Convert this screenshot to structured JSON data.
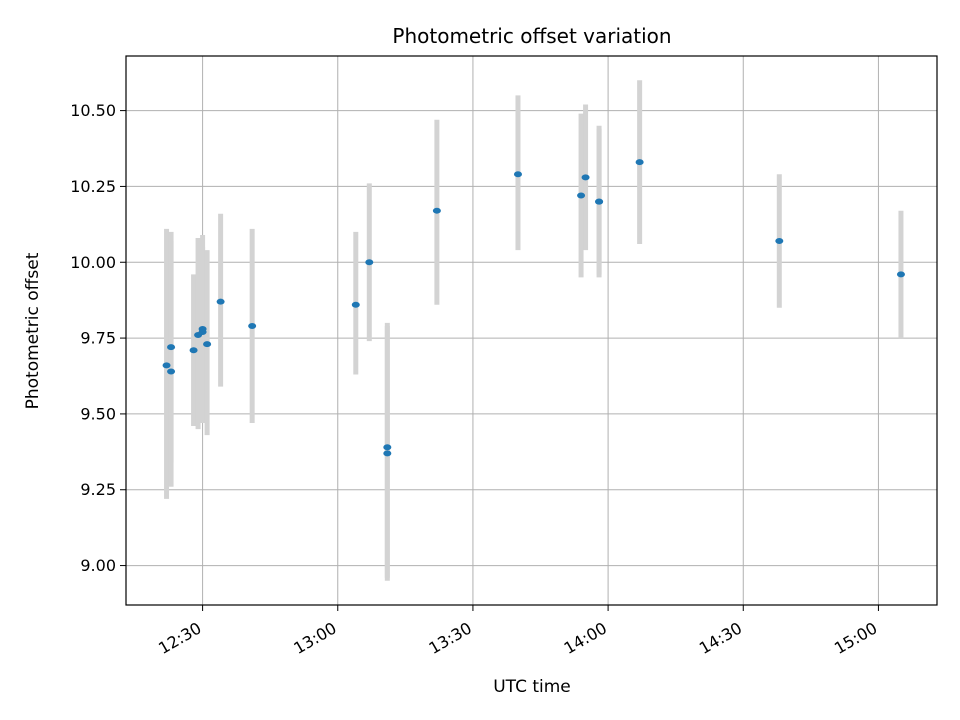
{
  "chart_data": {
    "type": "scatter",
    "title": "Photometric offset variation",
    "xlabel": "UTC time",
    "ylabel": "Photometric offset",
    "x_ticks": [
      "12:30",
      "13:00",
      "13:30",
      "14:00",
      "14:30",
      "15:00"
    ],
    "y_ticks": [
      "9.00",
      "9.25",
      "9.50",
      "9.75",
      "10.00",
      "10.25",
      "10.50"
    ],
    "xlim": [
      "12:13",
      "15:13"
    ],
    "ylim": [
      8.87,
      10.68
    ],
    "grid": true,
    "point_color": "#1f77b4",
    "errorbar_color": "#d3d3d3",
    "points": [
      {
        "time": "12:22",
        "value": 9.66,
        "lo": 9.22,
        "hi": 10.11
      },
      {
        "time": "12:23",
        "value": 9.64,
        "lo": 9.26,
        "hi": 10.07
      },
      {
        "time": "12:23",
        "value": 9.72,
        "lo": 9.34,
        "hi": 10.1
      },
      {
        "time": "12:28",
        "value": 9.71,
        "lo": 9.46,
        "hi": 9.96
      },
      {
        "time": "12:29",
        "value": 9.76,
        "lo": 9.45,
        "hi": 10.08
      },
      {
        "time": "12:30",
        "value": 9.78,
        "lo": 9.47,
        "hi": 10.09
      },
      {
        "time": "12:30",
        "value": 9.77,
        "lo": 9.49,
        "hi": 10.05
      },
      {
        "time": "12:31",
        "value": 9.73,
        "lo": 9.43,
        "hi": 10.04
      },
      {
        "time": "12:34",
        "value": 9.87,
        "lo": 9.59,
        "hi": 10.16
      },
      {
        "time": "12:41",
        "value": 9.79,
        "lo": 9.47,
        "hi": 10.11
      },
      {
        "time": "13:04",
        "value": 9.86,
        "lo": 9.63,
        "hi": 10.1
      },
      {
        "time": "13:07",
        "value": 10.0,
        "lo": 9.74,
        "hi": 10.26
      },
      {
        "time": "13:11",
        "value": 9.37,
        "lo": 8.95,
        "hi": 9.79
      },
      {
        "time": "13:11",
        "value": 9.39,
        "lo": 8.96,
        "hi": 9.8
      },
      {
        "time": "13:22",
        "value": 10.17,
        "lo": 9.86,
        "hi": 10.47
      },
      {
        "time": "13:40",
        "value": 10.29,
        "lo": 10.04,
        "hi": 10.55
      },
      {
        "time": "13:54",
        "value": 10.22,
        "lo": 9.95,
        "hi": 10.49
      },
      {
        "time": "13:55",
        "value": 10.28,
        "lo": 10.04,
        "hi": 10.52
      },
      {
        "time": "13:58",
        "value": 10.2,
        "lo": 9.95,
        "hi": 10.45
      },
      {
        "time": "13:58",
        "value": 10.2,
        "lo": 9.96,
        "hi": 10.44
      },
      {
        "time": "14:07",
        "value": 10.33,
        "lo": 10.06,
        "hi": 10.6
      },
      {
        "time": "14:38",
        "value": 10.07,
        "lo": 9.85,
        "hi": 10.29
      },
      {
        "time": "15:05",
        "value": 9.96,
        "lo": 9.75,
        "hi": 10.17
      }
    ]
  }
}
